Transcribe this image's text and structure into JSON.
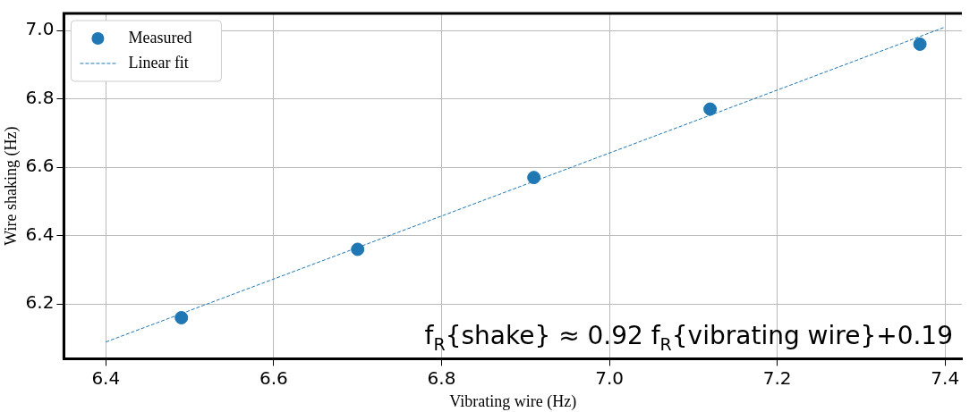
{
  "chart_data": {
    "type": "scatter",
    "xlabel": "Vibrating wire (Hz)",
    "ylabel": "Wire shaking (Hz)",
    "xlim": [
      6.35,
      7.42
    ],
    "ylim": [
      6.04,
      7.05
    ],
    "xticks": [
      6.4,
      6.6,
      6.8,
      {
        "value": 7,
        "label": "7.0"
      },
      7.2,
      7.4
    ],
    "yticks": [
      6.2,
      6.4,
      6.6,
      6.8,
      {
        "value": 7,
        "label": "7.0"
      }
    ],
    "grid": true,
    "legend": "top left",
    "series": [
      {
        "name": "Measured",
        "type": "scatter",
        "color": "#1f77b4",
        "marker": "circle",
        "x": [
          6.49,
          6.7,
          6.91,
          7.12,
          7.37
        ],
        "values": [
          6.16,
          6.36,
          6.57,
          6.77,
          6.96
        ]
      },
      {
        "name": "Linear fit",
        "type": "line",
        "color": "#1f77b4",
        "line_style": "dashed",
        "marker": "none",
        "x": [
          6.4,
          7.4
        ],
        "values": [
          6.089,
          7.01
        ]
      }
    ],
    "annotations": [
      "f$_{R}${shake} ≈ 0.92 f$_{R}${vibrating wire}+0.19"
    ]
  }
}
